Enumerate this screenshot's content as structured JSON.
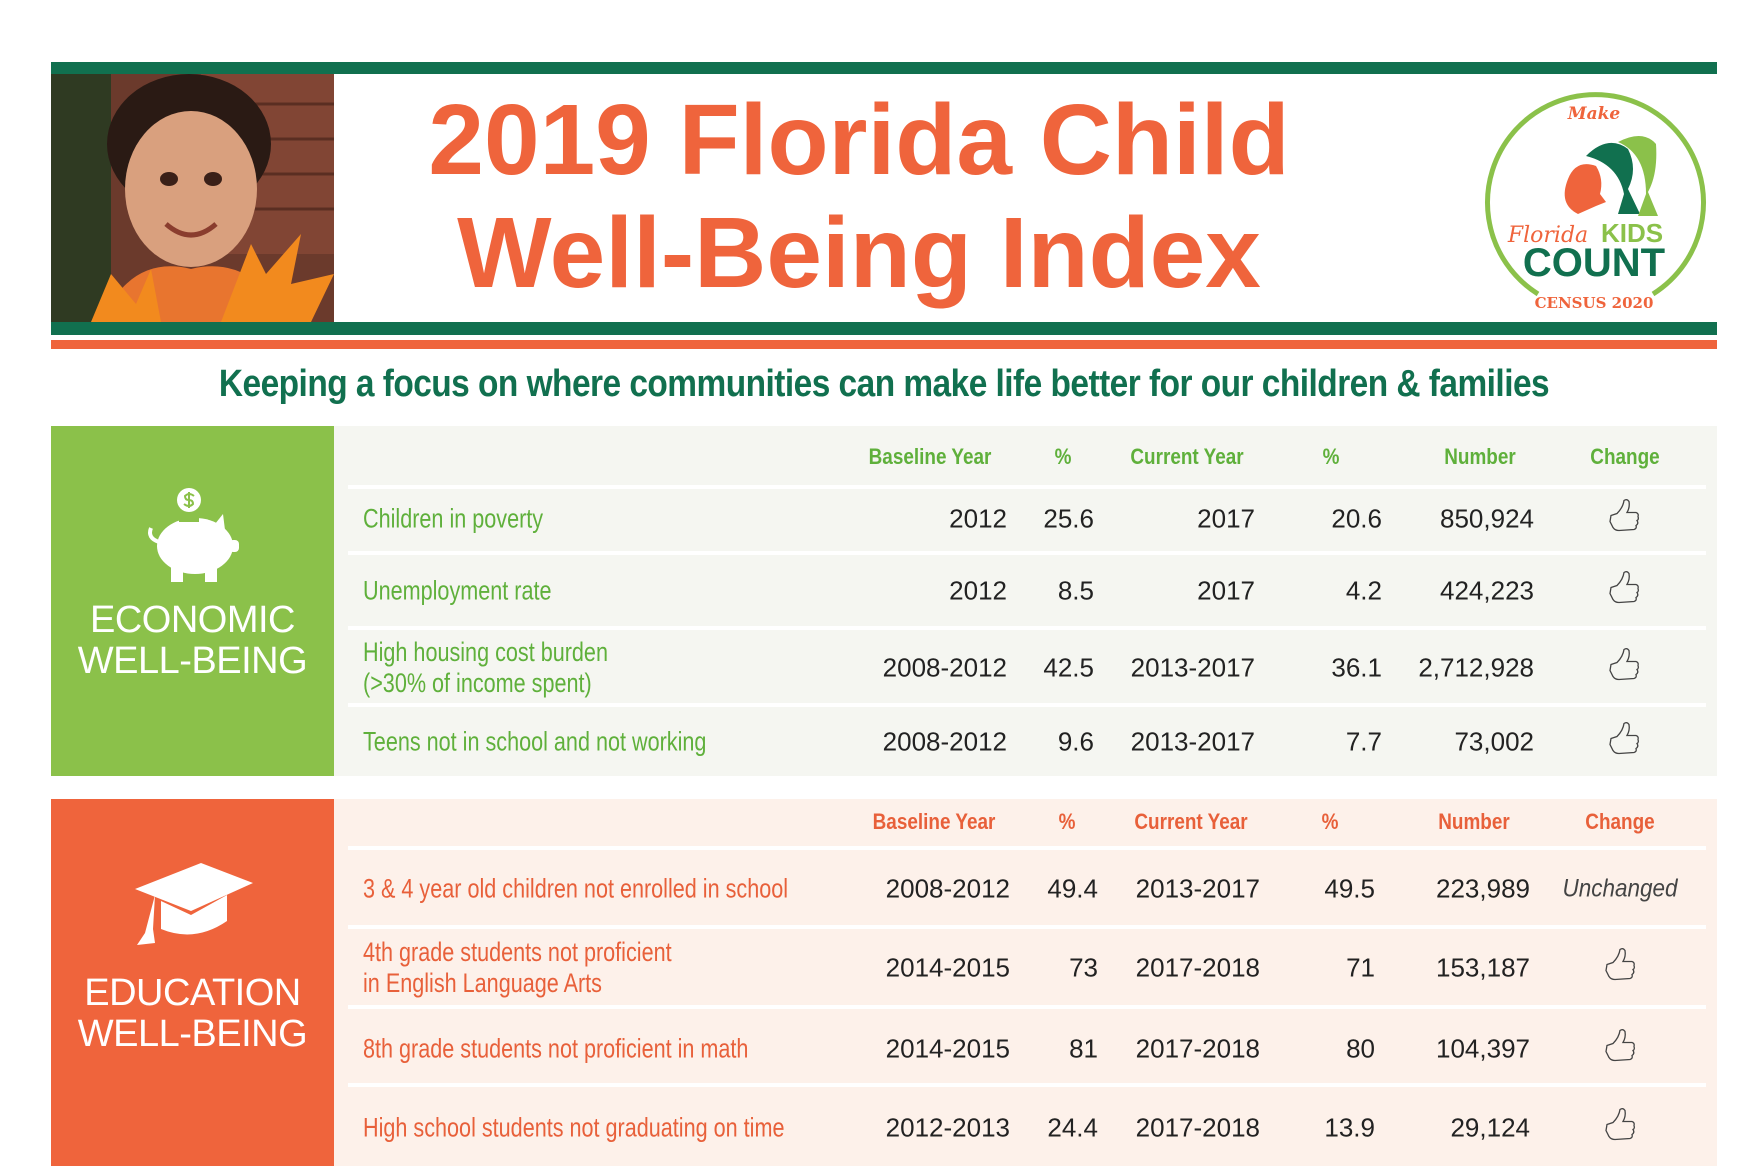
{
  "header": {
    "title_line1": "2019 Florida Child",
    "title_line2": "Well-Being Index",
    "subtitle": "Keeping a focus on where communities can make life better for our children & families"
  },
  "logo": {
    "make": "Make",
    "florida": "Florida",
    "kids": "KIDS",
    "count": "COUNT",
    "census": "CENSUS 2020"
  },
  "colors": {
    "dark_green": "#11704f",
    "light_green": "#8bc14a",
    "orange": "#ef643c",
    "econ_bg": "#f5f6f1",
    "edu_bg": "#fdf1ea"
  },
  "columns": [
    "Baseline Year",
    "%",
    "Current Year",
    "%",
    "Number",
    "Change"
  ],
  "sections": [
    {
      "id": "econ",
      "title_line1": "ECONOMIC",
      "title_line2": "WELL-BEING",
      "icon": "piggy-bank-icon",
      "rows": [
        {
          "label": [
            "Children in poverty"
          ],
          "baseline_year": "2012",
          "baseline_pct": "25.6",
          "current_year": "2017",
          "current_pct": "20.6",
          "number": "850,924",
          "change": "thumbs-up-icon"
        },
        {
          "label": [
            "Unemployment rate"
          ],
          "baseline_year": "2012",
          "baseline_pct": "8.5",
          "current_year": "2017",
          "current_pct": "4.2",
          "number": "424,223",
          "change": "thumbs-up-icon"
        },
        {
          "label": [
            "High housing cost burden",
            "(>30% of income spent)"
          ],
          "baseline_year": "2008-2012",
          "baseline_pct": "42.5",
          "current_year": "2013-2017",
          "current_pct": "36.1",
          "number": "2,712,928",
          "change": "thumbs-up-icon"
        },
        {
          "label": [
            "Teens not in school and not working"
          ],
          "baseline_year": "2008-2012",
          "baseline_pct": "9.6",
          "current_year": "2013-2017",
          "current_pct": "7.7",
          "number": "73,002",
          "change": "thumbs-up-icon"
        }
      ]
    },
    {
      "id": "edu",
      "title_line1": "EDUCATION",
      "title_line2": "WELL-BEING",
      "icon": "graduation-cap-icon",
      "rows": [
        {
          "label": [
            "3 & 4 year old children not enrolled in school"
          ],
          "baseline_year": "2008-2012",
          "baseline_pct": "49.4",
          "current_year": "2013-2017",
          "current_pct": "49.5",
          "number": "223,989",
          "change_text": "Unchanged"
        },
        {
          "label": [
            "4th grade students not proficient",
            "in English Language Arts"
          ],
          "baseline_year": "2014-2015",
          "baseline_pct": "73",
          "current_year": "2017-2018",
          "current_pct": "71",
          "number": "153,187",
          "change": "thumbs-up-icon"
        },
        {
          "label": [
            "8th grade students not proficient in math"
          ],
          "baseline_year": "2014-2015",
          "baseline_pct": "81",
          "current_year": "2017-2018",
          "current_pct": "80",
          "number": "104,397",
          "change": "thumbs-up-icon"
        },
        {
          "label": [
            "High school students not graduating on time"
          ],
          "baseline_year": "2012-2013",
          "baseline_pct": "24.4",
          "current_year": "2017-2018",
          "current_pct": "13.9",
          "number": "29,124",
          "change": "thumbs-up-icon"
        }
      ]
    }
  ]
}
